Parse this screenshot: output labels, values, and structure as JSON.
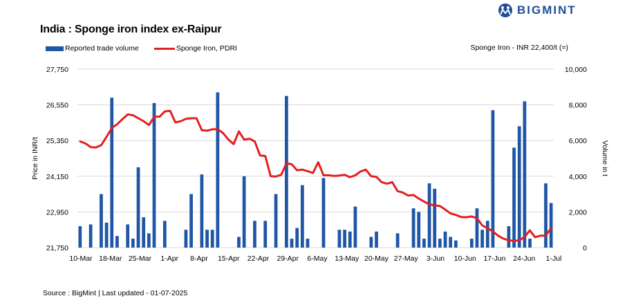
{
  "logo": {
    "text": "BIGMINT",
    "icon": "bigmint-logo-icon"
  },
  "chart_data": {
    "type": "bar+line",
    "title": "India : Sponge iron index ex-Raipur",
    "note": "Sponge Iron - INR 22,400/t (=)",
    "source": "Source : BigMint | Last updated - 01-07-2025",
    "legend": {
      "placement": "top-left"
    },
    "grid": true,
    "ylabel_left": "Price in INR/t",
    "ylabel_right": "Volume in t",
    "ylim_left": [
      21750,
      27750
    ],
    "ylim_right": [
      0,
      10000
    ],
    "yticks_left": [
      "21,750",
      "22,950",
      "24,150",
      "25,350",
      "26,550",
      "27,750"
    ],
    "yticks_right": [
      "0",
      "2,000",
      "4,000",
      "6,000",
      "8,000",
      "10,000"
    ],
    "xticks": [
      "10-Mar",
      "18-Mar",
      "25-Mar",
      "1-Apr",
      "8-Apr",
      "15-Apr",
      "22-Apr",
      "29-Apr",
      "6-May",
      "13-May",
      "20-May",
      "27-May",
      "3-Jun",
      "10-Jun",
      "17-Jun",
      "24-Jun",
      "1-Jul"
    ],
    "series": [
      {
        "name": "Reported trade volume",
        "kind": "bar",
        "axis": "right",
        "color": "#1f56a5",
        "values": [
          1200,
          0,
          1300,
          0,
          3000,
          1400,
          8400,
          650,
          0,
          1300,
          500,
          4500,
          1700,
          800,
          8100,
          0,
          1500,
          0,
          0,
          0,
          1000,
          3000,
          0,
          4100,
          1000,
          1000,
          8700,
          0,
          0,
          0,
          600,
          4000,
          0,
          1500,
          0,
          1500,
          0,
          3000,
          0,
          8500,
          500,
          1100,
          3500,
          500,
          0,
          0,
          3900,
          0,
          0,
          1000,
          1000,
          900,
          2300,
          0,
          0,
          600,
          900,
          0,
          0,
          0,
          800,
          0,
          0,
          2200,
          2000,
          500,
          3600,
          3300,
          500,
          900,
          600,
          400,
          0,
          0,
          500,
          2200,
          1000,
          1500,
          7700,
          0,
          0,
          1200,
          5600,
          6800,
          8200,
          500,
          0,
          0,
          3600,
          2500
        ]
      },
      {
        "name": "Sponge Iron, PDRI",
        "kind": "line",
        "axis": "left",
        "color": "#e41e1e",
        "values": [
          25320,
          25250,
          25130,
          25120,
          25200,
          25480,
          25780,
          25900,
          26070,
          26230,
          26200,
          26100,
          26000,
          25870,
          26150,
          26150,
          26330,
          26350,
          25960,
          26000,
          26080,
          26100,
          26100,
          25700,
          25680,
          25730,
          25730,
          25600,
          25390,
          25230,
          25660,
          25380,
          25410,
          25320,
          24850,
          24830,
          24150,
          24140,
          24200,
          24590,
          24550,
          24350,
          24370,
          24320,
          24260,
          24620,
          24180,
          24180,
          24160,
          24170,
          24200,
          24120,
          24180,
          24310,
          24370,
          24150,
          24130,
          23950,
          23900,
          23950,
          23650,
          23600,
          23500,
          23520,
          23400,
          23300,
          23200,
          23170,
          23150,
          23030,
          22900,
          22850,
          22780,
          22770,
          22800,
          22740,
          22500,
          22400,
          22300,
          22150,
          22050,
          22000,
          21970,
          22000,
          22100,
          22330,
          22100,
          22150,
          22150,
          22400
        ]
      }
    ]
  }
}
